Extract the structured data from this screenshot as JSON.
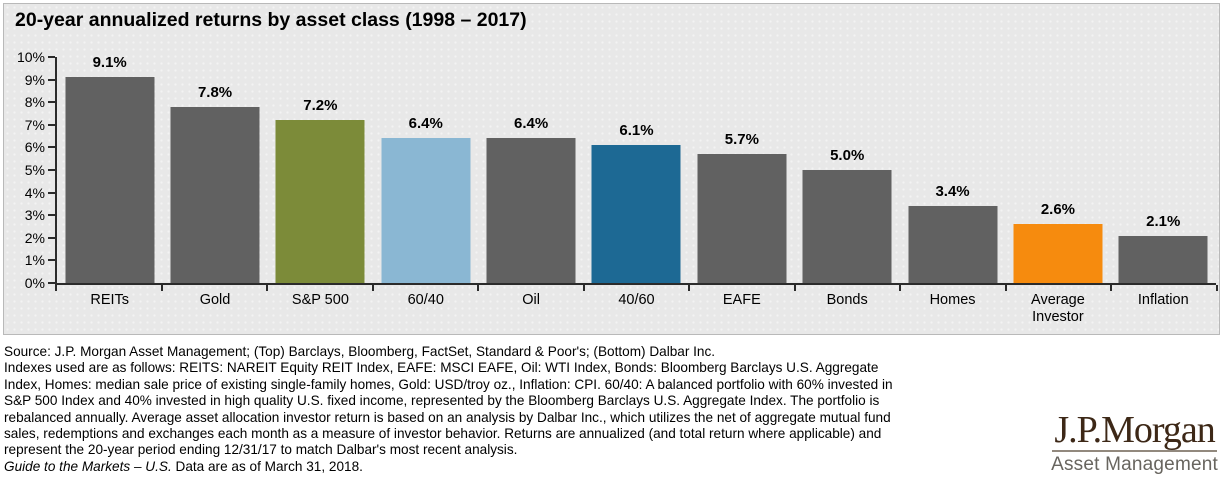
{
  "chart_data": {
    "type": "bar",
    "title": "20-year annualized returns by asset class (1998 – 2017)",
    "categories": [
      "REITs",
      "Gold",
      "S&P 500",
      "60/40",
      "Oil",
      "40/60",
      "EAFE",
      "Bonds",
      "Homes",
      "Average Investor",
      "Inflation"
    ],
    "values": [
      9.1,
      7.8,
      7.2,
      6.4,
      6.4,
      6.1,
      5.7,
      5.0,
      3.4,
      2.6,
      2.1
    ],
    "value_labels": [
      "9.1%",
      "7.8%",
      "7.2%",
      "6.4%",
      "6.4%",
      "6.1%",
      "5.7%",
      "5.0%",
      "3.4%",
      "2.6%",
      "2.1%"
    ],
    "bar_colors": [
      "#616161",
      "#616161",
      "#7c8b39",
      "#8ab7d3",
      "#616161",
      "#1d6994",
      "#616161",
      "#616161",
      "#616161",
      "#f68b0e",
      "#616161"
    ],
    "xlabel": "",
    "ylabel": "",
    "ylim": [
      0,
      10
    ],
    "ytick_step": 1,
    "ytick_suffix": "%",
    "grid": false,
    "legend": "none",
    "panel_background": "#e8e8e8"
  },
  "footnote": {
    "lines": [
      "Source: J.P. Morgan Asset Management; (Top) Barclays, Bloomberg, FactSet, Standard & Poor's; (Bottom) Dalbar Inc.",
      "Indexes used are as follows: REITS: NAREIT Equity REIT Index, EAFE: MSCI EAFE, Oil: WTI Index, Bonds: Bloomberg Barclays U.S. Aggregate",
      "Index, Homes: median sale price of existing single-family homes, Gold: USD/troy oz., Inflation: CPI. 60/40: A balanced portfolio with 60% invested in",
      "S&P 500 Index and 40% invested in high quality U.S. fixed income, represented by the Bloomberg Barclays U.S. Aggregate Index. The portfolio is",
      "rebalanced annually. Average asset allocation investor return is based on an analysis by Dalbar Inc., which utilizes the net of aggregate mutual fund",
      "sales, redemptions and exchanges each month as a measure of investor behavior. Returns are annualized (and total return where applicable) and",
      "represent the 20-year period ending 12/31/17 to match Dalbar's most recent analysis."
    ],
    "guide_line": {
      "italic": "Guide to the Markets – U.S.",
      "rest": " Data are as of March 31, 2018."
    }
  },
  "logo": {
    "brand": "J.P.Morgan",
    "division": "Asset Management",
    "brand_color": "#3d2817",
    "rule_color": "#92897e",
    "division_color": "#68655f"
  }
}
